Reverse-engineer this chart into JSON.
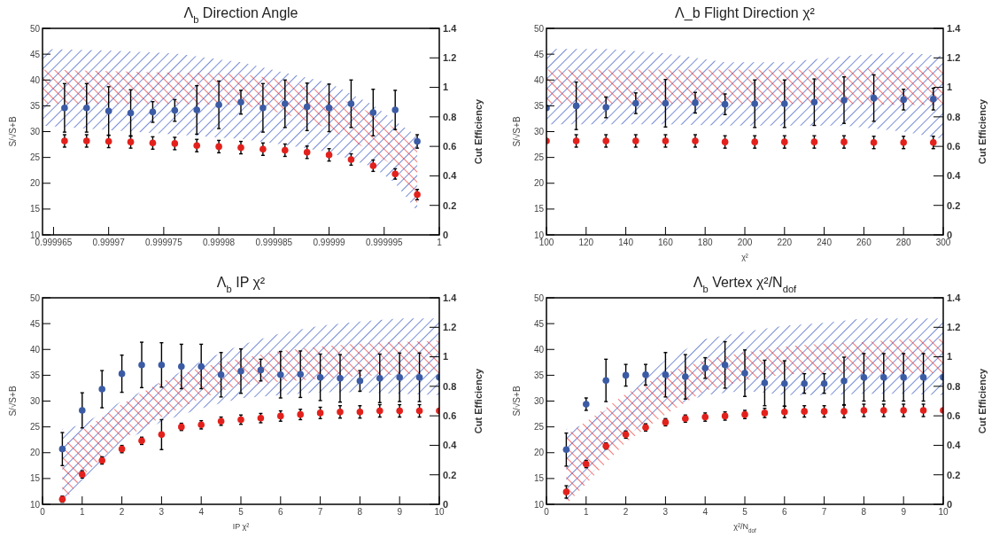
{
  "chart_data": [
    {
      "type": "scatter",
      "title": "Λ$_{b}$ Direction Angle",
      "ylabel": "S/√S+B",
      "y2label": "Cut Efficiency",
      "marker": "circle",
      "xlim": [
        0.999964,
        1
      ],
      "xticks": [
        0.999965,
        0.99997,
        0.999975,
        0.99998,
        0.999985,
        0.99999,
        0.999995,
        1
      ],
      "ylim": [
        10,
        50
      ],
      "yticks": [
        10,
        15,
        20,
        25,
        30,
        35,
        40,
        45,
        50
      ],
      "y2lim": [
        0,
        1.4
      ],
      "y2ticks": [
        0,
        0.2,
        0.4,
        0.6,
        0.8,
        1,
        1.2,
        1.4
      ],
      "x": [
        0.999966,
        0.999968,
        0.99997,
        0.999972,
        0.999974,
        0.999976,
        0.999978,
        0.99998,
        0.999982,
        0.999984,
        0.999986,
        0.999988,
        0.99999,
        0.999992,
        0.999994,
        0.999996,
        0.999998
      ],
      "series": [
        {
          "type": "scatter",
          "color": "#3b5ba5",
          "values": [
            34.6,
            34.6,
            34.0,
            33.6,
            33.8,
            34.1,
            34.2,
            35.2,
            35.7,
            34.6,
            35.4,
            34.8,
            34.6,
            35.4,
            33.7,
            34.2,
            28.1
          ],
          "errors": [
            4.7,
            4.7,
            4.7,
            4.5,
            2.0,
            2.1,
            4.7,
            4.6,
            2.3,
            4.7,
            4.6,
            4.6,
            4.6,
            4.6,
            4.5,
            3.8,
            1.3
          ]
        },
        {
          "type": "scatter",
          "color": "#e3211c",
          "values": [
            28.2,
            28.2,
            28.1,
            28.0,
            27.8,
            27.7,
            27.3,
            27.1,
            26.9,
            26.6,
            26.4,
            26.0,
            25.5,
            24.6,
            23.4,
            21.8,
            17.8
          ],
          "errors": [
            1.2,
            1.2,
            1.2,
            1.2,
            1.2,
            1.2,
            1.2,
            1.2,
            1.2,
            1.2,
            1.2,
            1.2,
            1.2,
            1.1,
            1.1,
            1.0,
            1.0
          ]
        },
        {
          "type": "area",
          "axis": "y2",
          "color": "#2e4fc0",
          "x": [
            0.999964,
            0.99997,
            0.999976,
            0.999982,
            0.999986,
            0.99999,
            0.999994,
            0.999996,
            0.999998
          ],
          "values": [
            null,
            null,
            null,
            null,
            null,
            null,
            null,
            null,
            null
          ],
          "lower": [
            0.74,
            0.71,
            0.68,
            0.65,
            0.61,
            0.56,
            0.46,
            0.35,
            0.16
          ],
          "upper": [
            1.26,
            1.25,
            1.23,
            1.17,
            1.1,
            1.03,
            0.88,
            0.77,
            0.67
          ]
        },
        {
          "type": "area",
          "axis": "y2",
          "color": "#f02a2a",
          "x": [
            0.999964,
            0.999976,
            0.999982,
            0.999986,
            0.99999,
            0.999994,
            0.999996,
            0.999998
          ],
          "values": [
            null,
            null,
            null,
            null,
            null,
            null,
            null,
            null
          ],
          "lower": [
            0.89,
            0.89,
            0.88,
            0.82,
            0.72,
            0.56,
            0.46,
            0.21
          ],
          "upper": [
            1.12,
            1.1,
            1.09,
            1.05,
            0.96,
            0.82,
            0.72,
            0.6
          ]
        }
      ]
    },
    {
      "type": "scatter",
      "title": "Λ_b Flight Direction χ²",
      "xlabel": "χ²",
      "ylabel": "S/√S+B",
      "y2label": "Cut Efficiency",
      "marker": "circle",
      "xlim": [
        100,
        300
      ],
      "xticks": [
        100,
        120,
        140,
        160,
        180,
        200,
        220,
        240,
        260,
        280,
        300
      ],
      "ylim": [
        10,
        50
      ],
      "yticks": [
        10,
        15,
        20,
        25,
        30,
        35,
        40,
        45,
        50
      ],
      "y2lim": [
        0,
        1.4
      ],
      "y2ticks": [
        0,
        0.2,
        0.4,
        0.6,
        0.8,
        1,
        1.2,
        1.4
      ],
      "x": [
        100,
        115,
        130,
        145,
        160,
        175,
        190,
        205,
        220,
        235,
        250,
        265,
        280,
        295
      ],
      "series": [
        {
          "type": "scatter",
          "color": "#3b5ba5",
          "values": [
            34.6,
            35.0,
            34.7,
            35.5,
            35.5,
            35.6,
            35.3,
            35.4,
            35.4,
            35.7,
            36.1,
            36.5,
            36.2,
            36.3
          ],
          "errors": [
            null,
            4.6,
            2.0,
            2.0,
            4.6,
            2.0,
            2.0,
            4.6,
            4.6,
            4.5,
            4.5,
            4.5,
            2.0,
            2.1
          ]
        },
        {
          "type": "scatter",
          "color": "#e3211c",
          "values": [
            28.2,
            28.2,
            28.2,
            28.2,
            28.2,
            28.2,
            28.0,
            28.0,
            28.0,
            28.0,
            28.0,
            27.9,
            27.9,
            27.9
          ],
          "errors": [
            null,
            1.2,
            1.2,
            1.2,
            1.2,
            1.2,
            1.2,
            1.2,
            1.2,
            1.2,
            1.2,
            1.2,
            1.2,
            1.2
          ]
        },
        {
          "type": "area",
          "axis": "y2",
          "color": "#2e4fc0",
          "x": [
            100,
            130,
            160,
            190,
            220,
            250,
            280,
            300
          ],
          "values": [
            null,
            null,
            null,
            null,
            null,
            null,
            null,
            null
          ],
          "lower": [
            0.75,
            0.75,
            0.75,
            0.74,
            0.74,
            0.74,
            0.7,
            0.65
          ],
          "upper": [
            1.26,
            1.26,
            1.23,
            1.17,
            1.17,
            1.21,
            1.24,
            1.21
          ]
        },
        {
          "type": "area",
          "axis": "y2",
          "color": "#f02a2a",
          "x": [
            100,
            130,
            160,
            190,
            220,
            250,
            280,
            300
          ],
          "values": [
            null,
            null,
            null,
            null,
            null,
            null,
            null,
            null
          ],
          "lower": [
            0.89,
            0.89,
            0.89,
            0.89,
            0.89,
            0.89,
            0.88,
            0.88
          ],
          "upper": [
            1.12,
            1.12,
            1.12,
            1.12,
            1.12,
            1.12,
            1.14,
            1.14
          ]
        }
      ]
    },
    {
      "type": "scatter",
      "title": "Λ$_{b}$ IP χ²",
      "xlabel": "IP χ²",
      "ylabel": "S/√S+B",
      "y2label": "Cut Efficiency",
      "marker": "circle",
      "xlim": [
        0,
        10
      ],
      "xticks": [
        0,
        1,
        2,
        3,
        4,
        5,
        6,
        7,
        8,
        9,
        10
      ],
      "ylim": [
        10,
        50
      ],
      "yticks": [
        10,
        15,
        20,
        25,
        30,
        35,
        40,
        45,
        50
      ],
      "y2lim": [
        0,
        1.4
      ],
      "y2ticks": [
        0,
        0.2,
        0.4,
        0.6,
        0.8,
        1,
        1.2,
        1.4
      ],
      "x": [
        0.5,
        1,
        1.5,
        2,
        2.5,
        3,
        3.5,
        4,
        4.5,
        5,
        5.5,
        6,
        6.5,
        7,
        7.5,
        8,
        8.5,
        9,
        9.5,
        10
      ],
      "series": [
        {
          "type": "scatter",
          "color": "#3b5ba5",
          "values": [
            20.7,
            28.2,
            32.3,
            35.3,
            37.0,
            37.0,
            36.7,
            36.7,
            35.1,
            35.8,
            36.0,
            35.1,
            35.2,
            34.6,
            34.4,
            33.9,
            34.4,
            34.6,
            34.6,
            34.6
          ],
          "errors": [
            3.2,
            3.4,
            3.6,
            3.6,
            4.4,
            4.3,
            4.3,
            4.3,
            4.3,
            4.3,
            2.1,
            4.5,
            4.5,
            4.5,
            4.6,
            2.0,
            4.7,
            4.7,
            4.7,
            null
          ]
        },
        {
          "type": "scatter",
          "color": "#e3211c",
          "values": [
            11.0,
            15.8,
            18.5,
            20.7,
            22.3,
            23.5,
            25.0,
            25.4,
            26.1,
            26.4,
            26.7,
            27.1,
            27.4,
            27.7,
            27.9,
            27.9,
            28.1,
            28.1,
            28.1,
            28.1
          ],
          "errors": [
            0.6,
            0.7,
            0.7,
            0.7,
            0.7,
            2.9,
            0.7,
            0.8,
            0.8,
            0.9,
            0.9,
            1.0,
            1.0,
            1.1,
            1.2,
            1.2,
            1.2,
            1.2,
            1.2,
            null
          ]
        },
        {
          "type": "area",
          "axis": "y2",
          "color": "#2e4fc0",
          "x": [
            0.5,
            1,
            2,
            3,
            4,
            5,
            6,
            7,
            8,
            9,
            10
          ],
          "values": [
            null,
            null,
            null,
            null,
            null,
            null,
            null,
            null,
            null,
            null,
            null
          ],
          "lower": [
            0,
            0.16,
            0.42,
            0.56,
            0.65,
            0.72,
            0.74,
            0.76,
            0.76,
            0.75,
            0.74
          ],
          "upper": [
            0.51,
            0.54,
            0.7,
            0.83,
            0.97,
            1.08,
            1.16,
            1.21,
            1.24,
            1.26,
            1.26
          ]
        },
        {
          "type": "area",
          "axis": "y2",
          "color": "#f02a2a",
          "x": [
            0.5,
            1,
            2,
            3,
            4,
            5,
            6,
            7,
            8,
            9,
            10
          ],
          "values": [
            null,
            null,
            null,
            null,
            null,
            null,
            null,
            null,
            null,
            null,
            null
          ],
          "lower": [
            0,
            0.19,
            0.44,
            0.59,
            0.72,
            0.81,
            0.83,
            0.85,
            0.87,
            0.88,
            0.89
          ],
          "upper": [
            0.39,
            0.5,
            0.68,
            0.83,
            0.93,
            0.99,
            1.04,
            1.07,
            1.09,
            1.1,
            1.11
          ]
        }
      ]
    },
    {
      "type": "scatter",
      "title": "Λ$_{b}$ Vertex χ²/N$_{dof}$",
      "xlabel": "χ²/N$_{dof}$",
      "ylabel": "S/√S+B",
      "y2label": "Cut Efficiency",
      "marker": "circle",
      "xlim": [
        0,
        10
      ],
      "xticks": [
        0,
        1,
        2,
        3,
        4,
        5,
        6,
        7,
        8,
        9,
        10
      ],
      "ylim": [
        10,
        50
      ],
      "yticks": [
        10,
        15,
        20,
        25,
        30,
        35,
        40,
        45,
        50
      ],
      "y2lim": [
        0,
        1.4
      ],
      "y2ticks": [
        0,
        0.2,
        0.4,
        0.6,
        0.8,
        1,
        1.2,
        1.4
      ],
      "x": [
        0.5,
        1,
        1.5,
        2,
        2.5,
        3,
        3.5,
        4,
        4.5,
        5,
        5.5,
        6,
        6.5,
        7,
        7.5,
        8,
        8.5,
        9,
        9.5,
        10
      ],
      "series": [
        {
          "type": "scatter",
          "color": "#3b5ba5",
          "values": [
            20.6,
            29.4,
            34.0,
            35.0,
            35.1,
            35.1,
            34.7,
            36.4,
            37.0,
            35.4,
            33.5,
            33.4,
            33.4,
            33.4,
            33.9,
            34.6,
            34.6,
            34.6,
            34.6,
            34.6
          ],
          "errors": [
            3.2,
            1.2,
            4.1,
            2.1,
            2.0,
            4.3,
            4.3,
            2.0,
            4.5,
            4.5,
            4.4,
            4.4,
            1.9,
            1.9,
            4.6,
            4.6,
            4.6,
            4.6,
            4.6,
            null
          ]
        },
        {
          "type": "scatter",
          "color": "#e3211c",
          "values": [
            12.4,
            17.8,
            21.3,
            23.5,
            24.9,
            25.9,
            26.6,
            26.9,
            27.1,
            27.4,
            27.7,
            27.9,
            28.0,
            28.0,
            28.0,
            28.2,
            28.2,
            28.2,
            28.2,
            28.2
          ],
          "errors": [
            1.2,
            0.7,
            0.6,
            0.7,
            0.7,
            0.7,
            0.7,
            0.8,
            0.8,
            0.8,
            0.9,
            1.1,
            1.1,
            1.1,
            1.2,
            1.2,
            1.2,
            1.2,
            1.2,
            null
          ]
        },
        {
          "type": "area",
          "axis": "y2",
          "color": "#2e4fc0",
          "x": [
            0.5,
            1,
            2,
            3,
            4,
            5,
            6,
            7,
            8,
            9,
            10
          ],
          "values": [
            null,
            null,
            null,
            null,
            null,
            null,
            null,
            null,
            null,
            null,
            null
          ],
          "lower": [
            0,
            0.17,
            0.46,
            0.65,
            0.74,
            0.77,
            0.74,
            0.74,
            0.75,
            0.75,
            0.74
          ],
          "upper": [
            0.51,
            0.54,
            0.74,
            0.98,
            1.12,
            1.17,
            1.21,
            1.23,
            1.26,
            1.26,
            1.26
          ]
        },
        {
          "type": "area",
          "axis": "y2",
          "color": "#f02a2a",
          "x": [
            0.5,
            1,
            2,
            3,
            4,
            5,
            6,
            7,
            8,
            9,
            10
          ],
          "values": [
            null,
            null,
            null,
            null,
            null,
            null,
            null,
            null,
            null,
            null,
            null
          ],
          "lower": [
            0,
            0.14,
            0.42,
            0.61,
            0.77,
            0.84,
            0.88,
            0.89,
            0.89,
            0.89,
            0.89
          ],
          "upper": [
            0.47,
            0.56,
            0.75,
            0.89,
            0.98,
            1.03,
            1.07,
            1.09,
            1.1,
            1.12,
            1.12
          ]
        }
      ]
    }
  ]
}
